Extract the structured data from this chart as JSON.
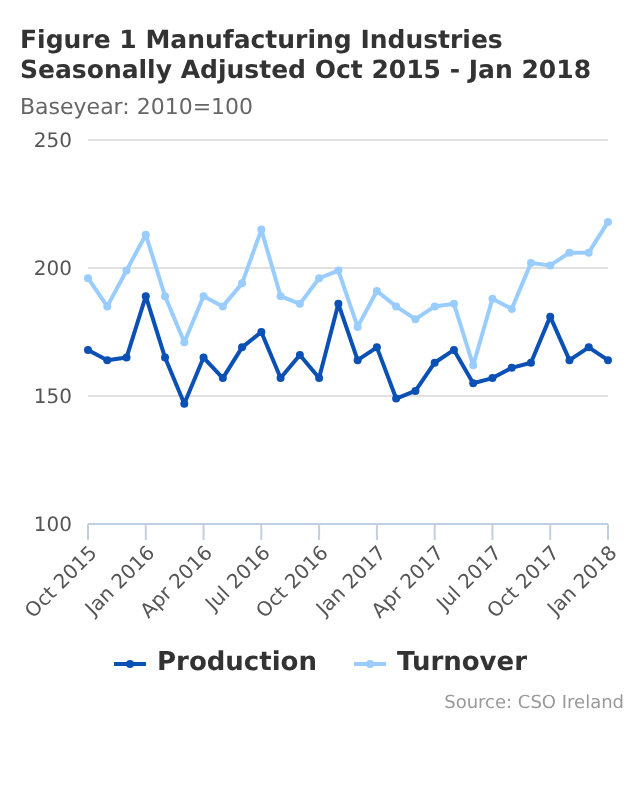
{
  "chart_data": {
    "type": "line",
    "title": "Figure 1 Manufacturing Industries Seasonally Adjusted Oct 2015 - Jan 2018",
    "subtitle": "Baseyear: 2010=100",
    "categories": [
      "Oct 2015",
      null,
      null,
      "Jan 2016",
      null,
      null,
      "Apr 2016",
      null,
      null,
      "Jul 2016",
      null,
      null,
      "Oct 2016",
      null,
      null,
      "Jan 2017",
      null,
      null,
      "Apr 2017",
      null,
      null,
      "Jul 2017",
      null,
      null,
      "Oct 2017",
      null,
      null,
      "Jan 2018"
    ],
    "series": [
      {
        "name": "Production",
        "color": "#0b50b4",
        "values": [
          168,
          164,
          165,
          189,
          165,
          147,
          165,
          157,
          169,
          175,
          157,
          166,
          157,
          186,
          164,
          169,
          149,
          152,
          163,
          168,
          155,
          157,
          161,
          163,
          181,
          164,
          169,
          164
        ]
      },
      {
        "name": "Turnover",
        "color": "#99ccff",
        "values": [
          196,
          185,
          199,
          213,
          189,
          171,
          189,
          185,
          194,
          215,
          189,
          186,
          196,
          199,
          177,
          191,
          185,
          180,
          185,
          186,
          162,
          188,
          184,
          202,
          201,
          206,
          206,
          218
        ]
      }
    ],
    "ylim": [
      100,
      250
    ],
    "yticks": [
      100,
      150,
      200,
      250
    ],
    "grid": "y",
    "legend": "bottom",
    "marker": "circle",
    "line_style": "solid",
    "annotations": [
      "Source: CSO Ireland"
    ]
  }
}
